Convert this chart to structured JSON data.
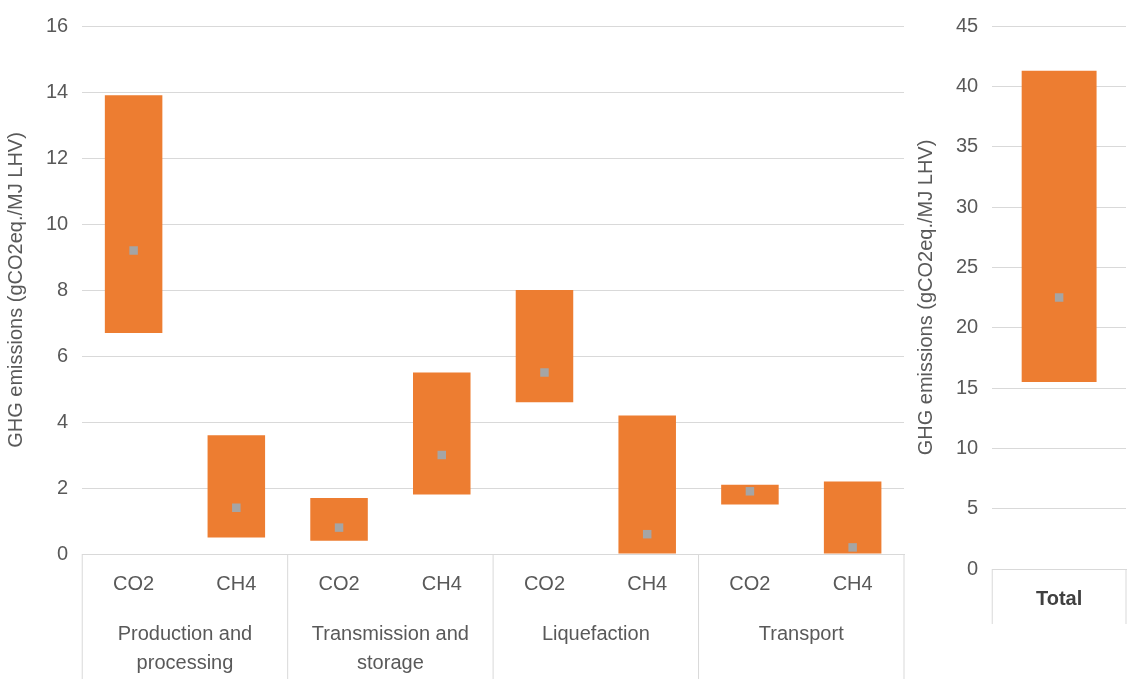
{
  "chart_data": [
    {
      "type": "bar",
      "ylabel": "GHG emissions (gCO2eq./MJ LHV)",
      "categories": [
        "CO2",
        "CH4",
        "CO2",
        "CH4",
        "CO2",
        "CH4",
        "CO2",
        "CH4"
      ],
      "series": [
        {
          "color": "#ed7d31",
          "base": [
            6.7,
            0.5,
            0.4,
            1.8,
            4.6,
            0,
            1.5,
            0
          ],
          "values": [
            7.2,
            3.1,
            1.3,
            3.7,
            3.4,
            4.2,
            0.6,
            2.2
          ]
        },
        {
          "type": "scatter",
          "marker": "square",
          "color": "#a5a5a5",
          "values": [
            9.2,
            1.4,
            0.8,
            3.0,
            5.5,
            0.6,
            1.9,
            0.2
          ]
        }
      ],
      "annotations": [
        "Production and processing",
        "Transmission and storage",
        "Liquefaction",
        "Transport"
      ],
      "ylim": [
        0,
        16
      ],
      "yticks": [
        0,
        2,
        4,
        6,
        8,
        10,
        12,
        14,
        16
      ],
      "grid": "y",
      "legend": false
    },
    {
      "type": "bar",
      "ylabel": "GHG emissions (gCO2eq./MJ LHV)",
      "categories": [
        "Total"
      ],
      "series": [
        {
          "color": "#ed7d31",
          "base": [
            15.5
          ],
          "values": [
            25.8
          ]
        },
        {
          "type": "scatter",
          "marker": "square",
          "color": "#a5a5a5",
          "values": [
            22.5
          ]
        }
      ],
      "ylim": [
        0,
        45
      ],
      "yticks": [
        0,
        5,
        10,
        15,
        20,
        25,
        30,
        35,
        40,
        45
      ],
      "grid": "y",
      "legend": false
    }
  ]
}
